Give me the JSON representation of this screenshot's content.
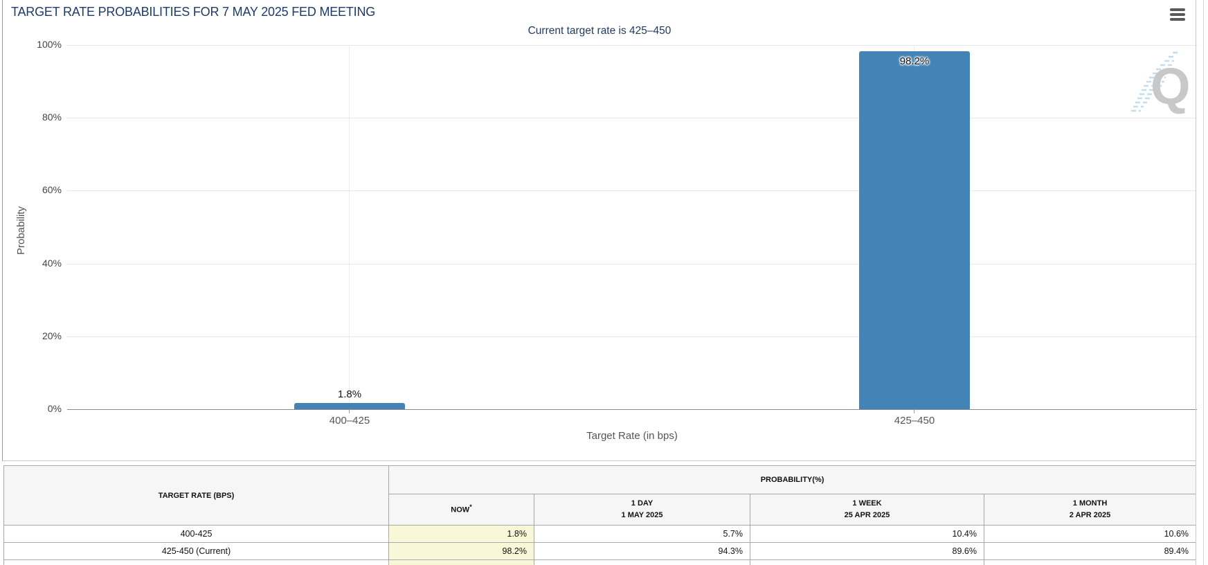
{
  "panel": {
    "title": "TARGET RATE PROBABILITIES FOR 7 MAY 2025 FED MEETING",
    "menu_icon": "hamburger-menu"
  },
  "chart_data": {
    "type": "bar",
    "title": "Current target rate is 425–450",
    "categories": [
      "400–425",
      "425–450"
    ],
    "values": [
      1.8,
      98.2
    ],
    "value_labels": [
      "1.8%",
      "98.2%"
    ],
    "xlabel": "Target Rate (in bps)",
    "ylabel": "Probability",
    "ylim": [
      0,
      100
    ],
    "y_ticks": [
      "100%",
      "80%",
      "60%",
      "40%",
      "20%",
      "0%"
    ],
    "bar_color": "#4383b5",
    "grid": "horizontal gridlines at 20% steps, one vertical gridline per category",
    "legend": "none",
    "watermark": "Q"
  },
  "table": {
    "corner_header": "TARGET RATE (BPS)",
    "group_header": "PROBABILITY(%)",
    "columns": [
      {
        "label": "NOW",
        "sup": "*",
        "sub": ""
      },
      {
        "label": "1 DAY",
        "sup": "",
        "sub": "1 MAY 2025"
      },
      {
        "label": "1 WEEK",
        "sup": "",
        "sub": "25 APR 2025"
      },
      {
        "label": "1 MONTH",
        "sup": "",
        "sub": "2 APR 2025"
      }
    ],
    "rows": [
      {
        "rate": "400-425",
        "now": "1.8%",
        "day": "5.7%",
        "week": "10.4%",
        "month": "10.6%"
      },
      {
        "rate": "425-450 (Current)",
        "now": "98.2%",
        "day": "94.3%",
        "week": "89.6%",
        "month": "89.4%"
      }
    ],
    "highlight_color": "#f8f8d8"
  },
  "colors": {
    "title_navy": "#1e3a6b",
    "bar_blue": "#4383b5",
    "highlight_yellow": "#f8f8d8"
  }
}
